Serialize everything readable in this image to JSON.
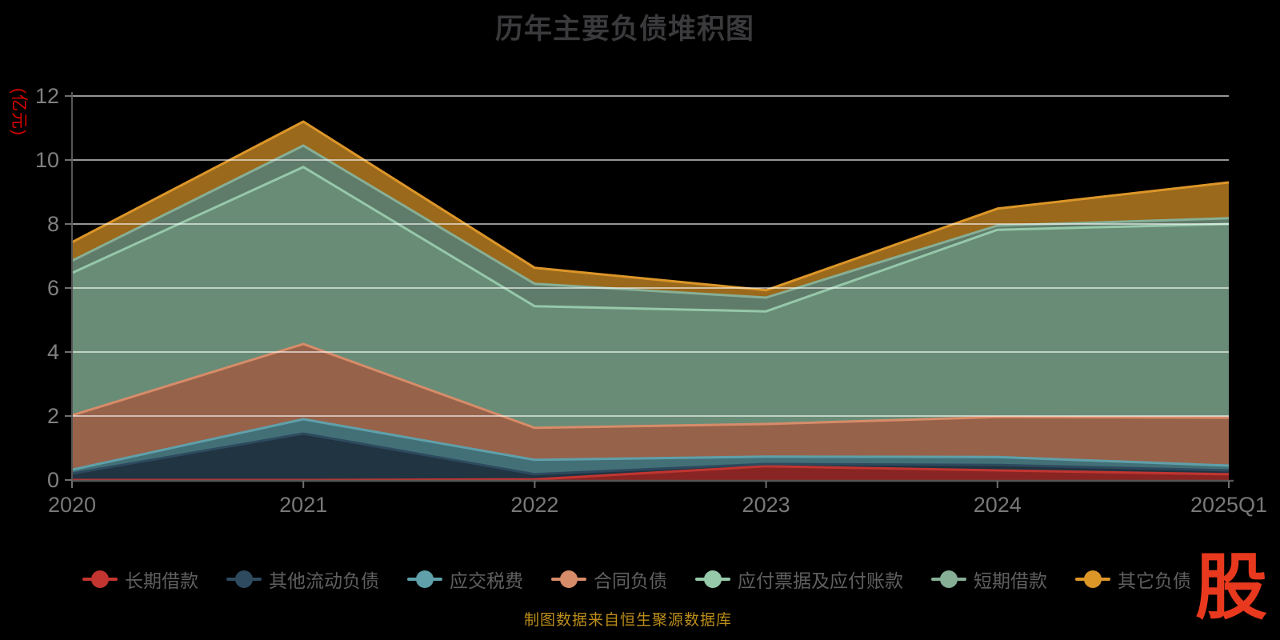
{
  "title": "历年主要负债堆积图",
  "y_axis": {
    "name": "(亿元)",
    "name_color": "#dd0000",
    "tick_label_color": "#808080",
    "ticks": [
      0,
      2,
      4,
      6,
      8,
      10,
      12
    ]
  },
  "x_axis": {
    "tick_label_color": "#787878",
    "categories": [
      "2020",
      "2021",
      "2022",
      "2023",
      "2024",
      "2025Q1"
    ]
  },
  "footer": {
    "text": "制图数据来自恒生聚源数据库",
    "color": "#bb8d1a"
  },
  "logo": {
    "text": "股",
    "color": "#e8391e"
  },
  "style_colors": {
    "background": "#000000",
    "title": "#3a3a3c",
    "grid_line": "rgba(255,255,255,0.78)",
    "axis_line": "#565656",
    "tick": "#6e6e6e",
    "legend_label": "#5f5f5f",
    "area_fill_opacity": 0.7
  },
  "chart_data": {
    "type": "area",
    "stacked": true,
    "title": "历年主要负债堆积图",
    "xlabel": "",
    "ylabel": "(亿元)",
    "ylim": [
      0,
      12
    ],
    "y_ticks": [
      0,
      2,
      4,
      6,
      8,
      10,
      12
    ],
    "grid": true,
    "legend_position": "bottom",
    "categories": [
      "2020",
      "2021",
      "2022",
      "2023",
      "2024",
      "2025Q1"
    ],
    "series": [
      {
        "id": "long-term-borrowings",
        "name": "长期借款",
        "color": "#c23531",
        "values": [
          0,
          0,
          0.02,
          0.43,
          0.3,
          0.18
        ]
      },
      {
        "id": "other-current-liabilities",
        "name": "其他流动负债",
        "color": "#2e4a5e",
        "values": [
          0.2,
          1.45,
          0.16,
          0.07,
          0.17,
          0.12
        ]
      },
      {
        "id": "taxes-payable",
        "name": "应交税费",
        "color": "#5fa0aa",
        "values": [
          0.12,
          0.45,
          0.45,
          0.23,
          0.25,
          0.15
        ]
      },
      {
        "id": "contract-liabilities",
        "name": "合同负债",
        "color": "#d78c69",
        "values": [
          1.7,
          2.35,
          1.0,
          1.02,
          1.25,
          1.5
        ]
      },
      {
        "id": "notes-accounts-payable",
        "name": "应付票据及应付账款",
        "color": "#96c8aa",
        "values": [
          4.45,
          5.53,
          3.8,
          3.52,
          5.85,
          6.05
        ]
      },
      {
        "id": "short-term-borrowings",
        "name": "短期借款",
        "color": "#87af96",
        "values": [
          0.38,
          0.67,
          0.7,
          0.43,
          0.13,
          0.18
        ]
      },
      {
        "id": "other-liabilities",
        "name": "其它负债",
        "color": "#dc9628",
        "values": [
          0.58,
          0.75,
          0.5,
          0.23,
          0.53,
          1.12
        ]
      }
    ],
    "stack_totals": [
      7.43,
      11.2,
      6.63,
      5.93,
      8.48,
      9.3
    ]
  }
}
